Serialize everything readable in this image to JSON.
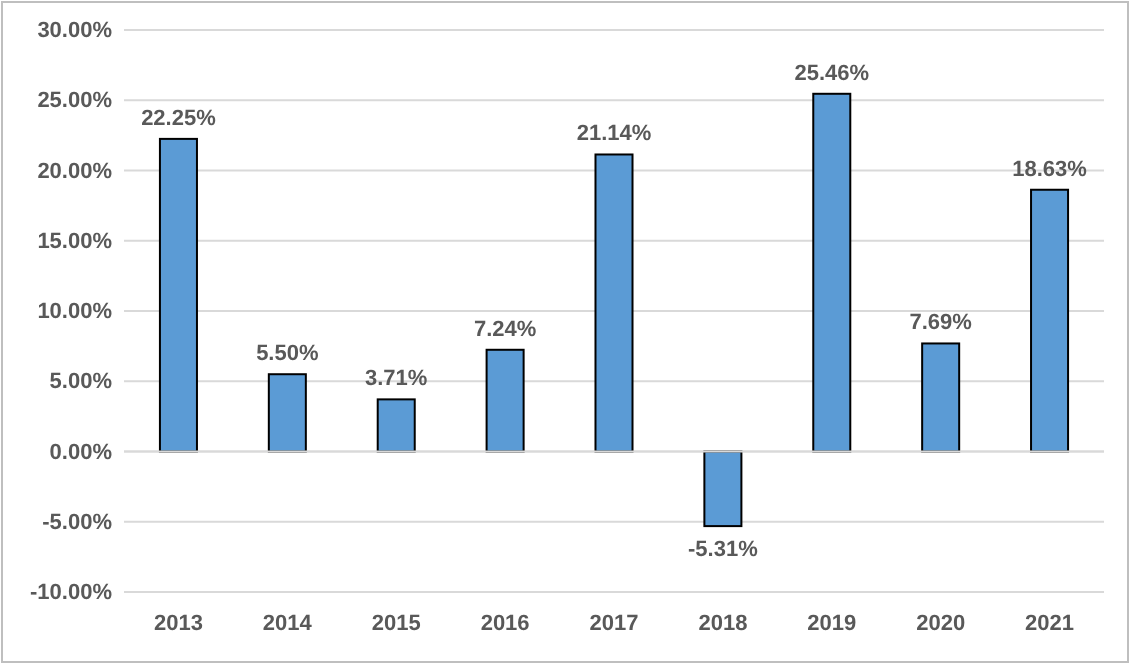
{
  "chart_data": {
    "type": "bar",
    "categories": [
      "2013",
      "2014",
      "2015",
      "2016",
      "2017",
      "2018",
      "2019",
      "2020",
      "2021"
    ],
    "values": [
      22.25,
      5.5,
      3.71,
      7.24,
      21.14,
      -5.31,
      25.46,
      7.69,
      18.63
    ],
    "value_labels": [
      "22.25%",
      "5.50%",
      "3.71%",
      "7.24%",
      "21.14%",
      "-5.31%",
      "25.46%",
      "7.69%",
      "18.63%"
    ],
    "color": "#5b9bd5",
    "ylim": [
      -10,
      30
    ],
    "yticks": [
      {
        "value": -10,
        "label": "-10.00%"
      },
      {
        "value": -5,
        "label": "-5.00%"
      },
      {
        "value": 0,
        "label": "0.00%"
      },
      {
        "value": 5,
        "label": "5.00%"
      },
      {
        "value": 10,
        "label": "10.00%"
      },
      {
        "value": 15,
        "label": "15.00%"
      },
      {
        "value": 20,
        "label": "20.00%"
      },
      {
        "value": 25,
        "label": "25.00%"
      },
      {
        "value": 30,
        "label": "30.00%"
      }
    ],
    "grid": "y"
  }
}
